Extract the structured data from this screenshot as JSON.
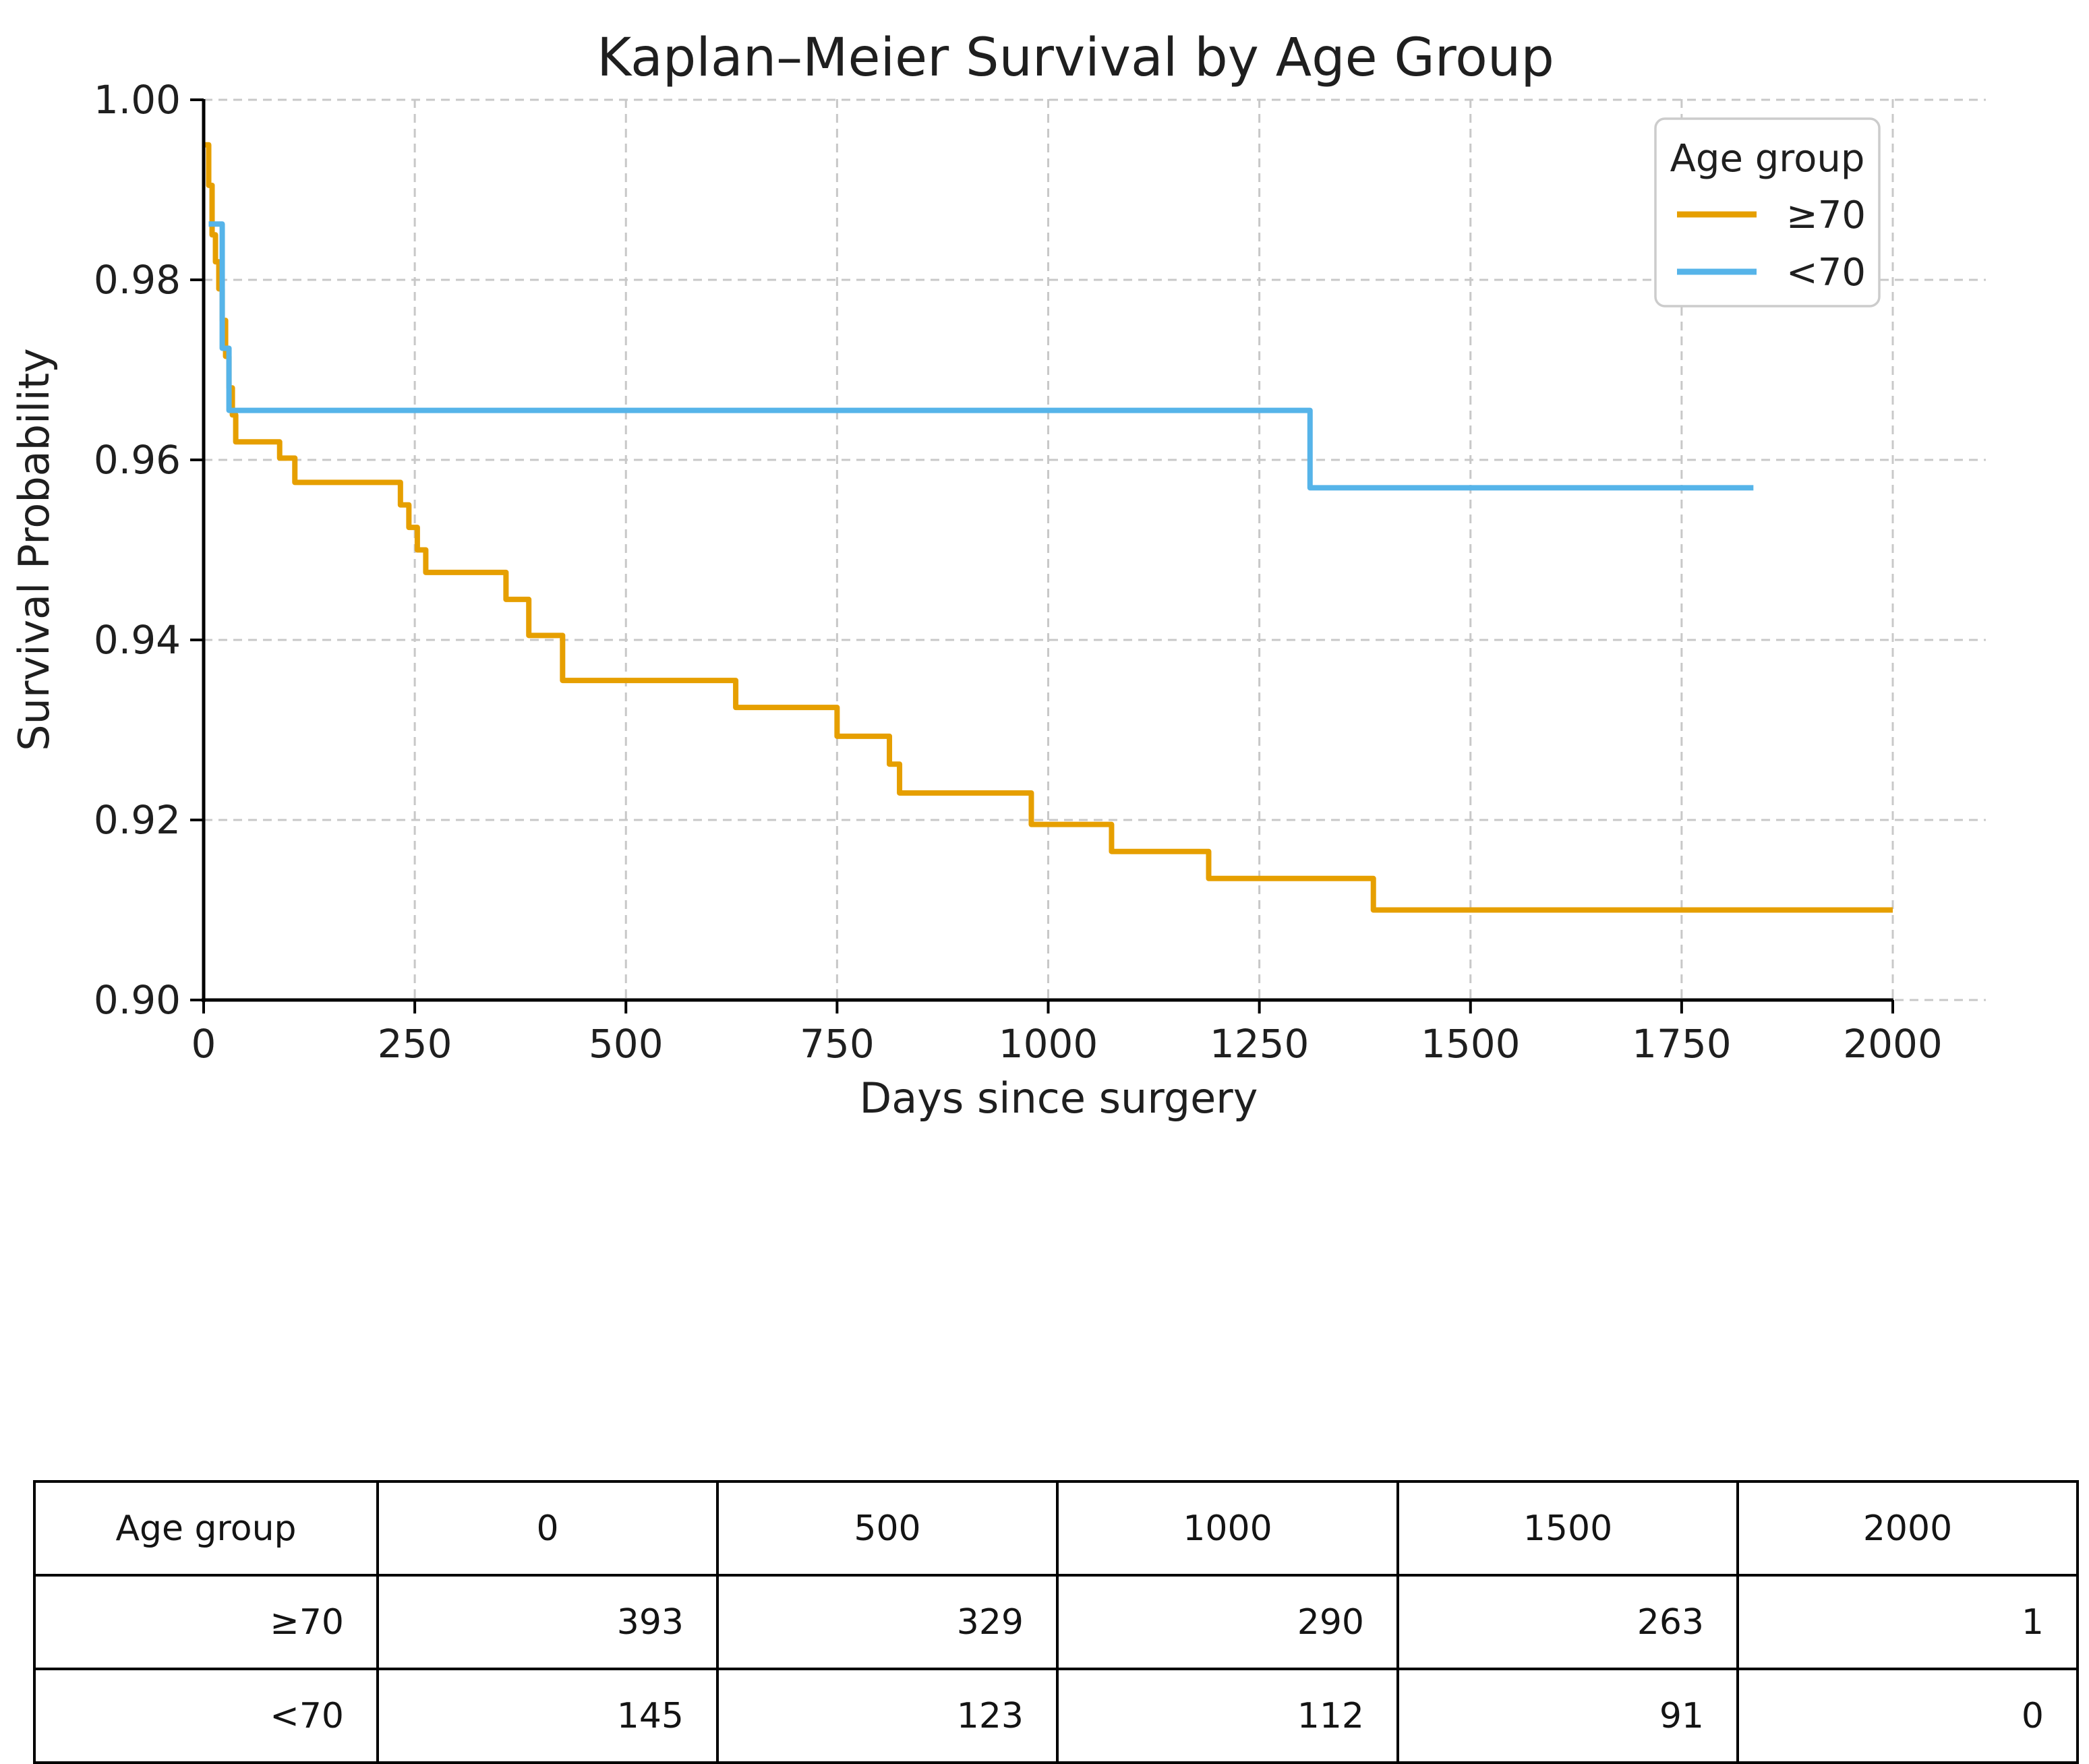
{
  "chart_data": {
    "type": "line",
    "subtype": "kaplan-meier-step",
    "title": "Kaplan–Meier Survival by Age Group",
    "xlabel": "Days since surgery",
    "ylabel": "Survival Probability",
    "xlim": [
      0,
      2115
    ],
    "ylim": [
      0.9,
      1.0
    ],
    "x_ticks": [
      0,
      250,
      500,
      750,
      1000,
      1250,
      1500,
      1750,
      2000
    ],
    "y_ticks": [
      1.0,
      0.98,
      0.96,
      0.94,
      0.92,
      0.9
    ],
    "y_tick_labels": [
      "1.00",
      "0.98",
      "0.96",
      "0.94",
      "0.92",
      "0.90"
    ],
    "grid": true,
    "legend": {
      "title": "Age group",
      "position": "upper-right"
    },
    "series": [
      {
        "name": "≥70",
        "color": "#E69F00",
        "points": [
          [
            2,
            0.995
          ],
          [
            6,
            0.9905
          ],
          [
            10,
            0.985
          ],
          [
            14,
            0.982
          ],
          [
            18,
            0.979
          ],
          [
            22,
            0.9755
          ],
          [
            26,
            0.9715
          ],
          [
            30,
            0.968
          ],
          [
            34,
            0.965
          ],
          [
            38,
            0.962
          ],
          [
            90,
            0.9602
          ],
          [
            108,
            0.9575
          ],
          [
            233,
            0.955
          ],
          [
            243,
            0.9525
          ],
          [
            253,
            0.95
          ],
          [
            263,
            0.9475
          ],
          [
            358,
            0.9445
          ],
          [
            385,
            0.9405
          ],
          [
            425,
            0.9355
          ],
          [
            630,
            0.9325
          ],
          [
            750,
            0.9293
          ],
          [
            812,
            0.9262
          ],
          [
            824,
            0.923
          ],
          [
            980,
            0.9195
          ],
          [
            1075,
            0.9165
          ],
          [
            1190,
            0.9135
          ],
          [
            1385,
            0.91
          ]
        ],
        "end_day": 2000
      },
      {
        "name": "<70",
        "color": "#56B4E9",
        "points": [
          [
            6,
            0.9862
          ],
          [
            22,
            0.9724
          ],
          [
            30,
            0.9655
          ],
          [
            1310,
            0.9569
          ]
        ],
        "end_day": 1835
      }
    ],
    "risk_table": {
      "header": [
        "Age group",
        "0",
        "500",
        "1000",
        "1500",
        "2000"
      ],
      "rows": [
        [
          "≥70",
          "393",
          "329",
          "290",
          "263",
          "1"
        ],
        [
          "<70",
          "145",
          "123",
          "112",
          "91",
          "0"
        ]
      ]
    },
    "colors": {
      "grid": "#c8c8c8",
      "spine": "#000000",
      "text": "#1f1f1f",
      "legend_border": "#cccccc",
      "background": "#ffffff"
    }
  }
}
